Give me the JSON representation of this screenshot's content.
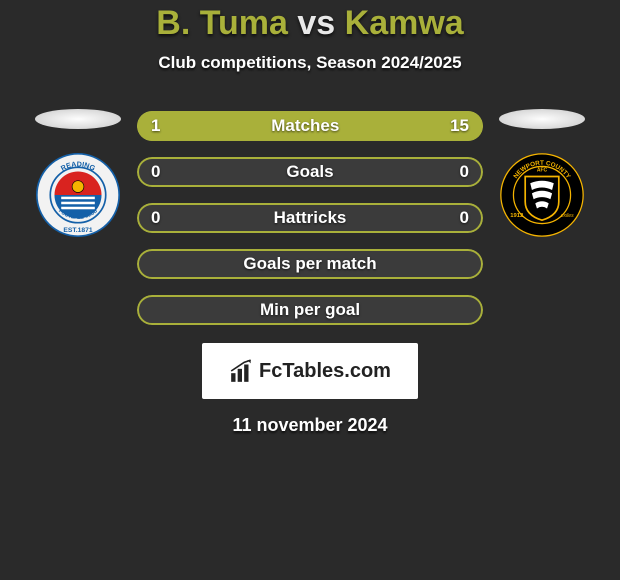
{
  "title": {
    "player1": "B. Tuma",
    "vs": "vs",
    "player2": "Kamwa",
    "color": "#a9b03a"
  },
  "subtitle": "Club competitions, Season 2024/2025",
  "accent_color": "#a9b03a",
  "bar_bg": "#3b3b3b",
  "bars": [
    {
      "label": "Matches",
      "left": "1",
      "right": "15",
      "left_pct": 6.25,
      "right_pct": 93.75
    },
    {
      "label": "Goals",
      "left": "0",
      "right": "0",
      "left_pct": 0,
      "right_pct": 0
    },
    {
      "label": "Hattricks",
      "left": "0",
      "right": "0",
      "left_pct": 0,
      "right_pct": 0
    },
    {
      "label": "Goals per match",
      "left": "",
      "right": "",
      "left_pct": 0,
      "right_pct": 0
    },
    {
      "label": "Min per goal",
      "left": "",
      "right": "",
      "left_pct": 0,
      "right_pct": 0
    }
  ],
  "crests": {
    "left": {
      "outer": "#f2f2f2",
      "ring": "#1460a8",
      "inner_top": "#d9231f",
      "inner_bottom": "#1460a8",
      "stripes": "#ffffff",
      "text_color": "#1460a8",
      "top_text": "READING",
      "bottom_text": "EST.1871",
      "mid_text": "FOOTBALL CLUB"
    },
    "right": {
      "outer": "#000000",
      "ring": "#f5b400",
      "shield_fill": "#000000",
      "shield_stroke": "#f5b400",
      "wing": "#ffffff",
      "text_color": "#f5b400",
      "top_text": "NEWPORT COUNTY",
      "year_left": "1912",
      "year_right": "exiles",
      "afc": "AFC"
    }
  },
  "logo_text": "FcTables.com",
  "date": "11 november 2024"
}
